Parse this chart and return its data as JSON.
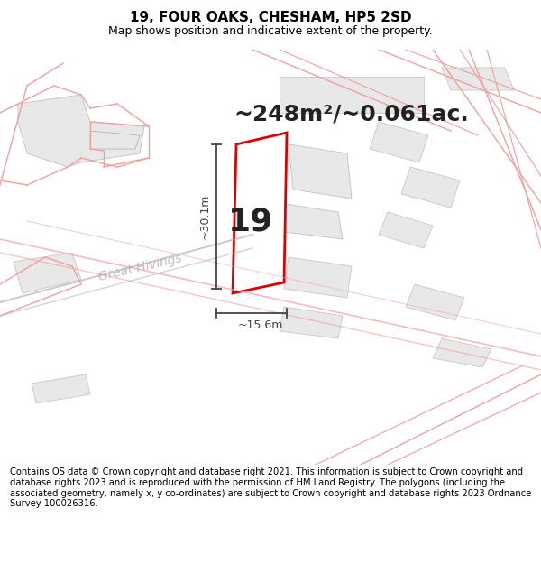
{
  "title": "19, FOUR OAKS, CHESHAM, HP5 2SD",
  "subtitle": "Map shows position and indicative extent of the property.",
  "area_text": "~248m²/~0.061ac.",
  "number_label": "19",
  "dim_horizontal": "~15.6m",
  "dim_vertical": "~30.1m",
  "road_label": "Great Hivings",
  "footer": "Contains OS data © Crown copyright and database right 2021. This information is subject to Crown copyright and database rights 2023 and is reproduced with the permission of HM Land Registry. The polygons (including the associated geometry, namely x, y co-ordinates) are subject to Crown copyright and database rights 2023 Ordnance Survey 100026316.",
  "bg_color": "#ffffff",
  "map_bg": "#ffffff",
  "plot_edge_color": "#dd0000",
  "building_fill": "#e8e8e8",
  "building_edge": "#c8c8c8",
  "parcel_edge": "#f0a0a0",
  "dim_line_color": "#444444",
  "road_label_color": "#b8b4b0",
  "title_fontsize": 11,
  "subtitle_fontsize": 9,
  "area_fontsize": 18,
  "num_fontsize": 26,
  "footer_fontsize": 7.2,
  "road_label_fontsize": 10
}
